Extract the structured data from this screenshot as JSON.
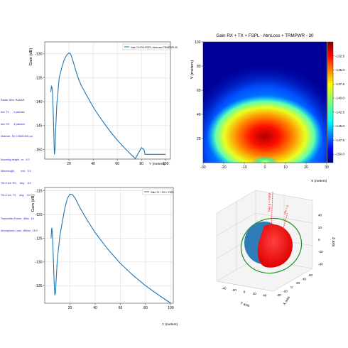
{
  "side_panel": {
    "group1": [
      "Radar: 80m: RADAR",
      "Ant. TX      4 patches",
      "Ant. RX      4 patches",
      "Material:  Re 0.5508 500 um"
    ],
    "group2": [
      "Mounting height,  m:   6.3",
      "Wavelength,        mm:   5.0",
      "Tilt of ant. RX,    deg:   -8.0",
      "Tilt of ant. TX,    deg:   -8.0"
    ],
    "group3": [
      "Transmitter Power:  dBm:  16",
      "Atmospheric Loss:  dB/km:  15.0"
    ]
  },
  "chart_data": [
    {
      "type": "line",
      "xlabel": "Y (meters)",
      "ylabel": "Gain (dB)",
      "xlim": [
        0,
        104
      ],
      "ylim": [
        -152,
        -127.5
      ],
      "xticks": [
        20,
        40,
        60,
        80,
        100
      ],
      "yticks": [
        -130,
        -135,
        -140,
        -145,
        -150
      ],
      "grid": true,
      "legend": "top-right",
      "series": [
        {
          "name": "Gain TX+RX+FSPL-AtmLoss+TRMPWR-30",
          "color": "#1f77b4",
          "x": [
            5,
            5.5,
            6,
            6.5,
            7,
            7.5,
            8,
            8.5,
            9,
            10,
            12,
            14,
            16,
            18,
            20,
            21,
            22,
            24,
            26,
            28,
            30,
            34,
            38,
            42,
            46,
            50,
            55,
            60,
            65,
            70,
            75,
            80,
            82,
            83,
            100
          ],
          "y": [
            -138,
            -136.8,
            -137,
            -138.5,
            -142,
            -147,
            -151,
            -150,
            -146,
            -140.5,
            -135,
            -133,
            -131.3,
            -130.3,
            -129.8,
            -129.9,
            -130.4,
            -132,
            -133.8,
            -135.3,
            -136.5,
            -138.4,
            -140.2,
            -141.9,
            -143.4,
            -144.8,
            -146.5,
            -148,
            -149.4,
            -150.7,
            -151.9,
            -149.6,
            -150,
            -151,
            -151
          ]
        }
      ]
    },
    {
      "type": "heatmap",
      "title": "Gain RX + TX + FSPL - AtmLoss + TRMPWR - 30",
      "xlabel": "X (meters)",
      "ylabel": "Y (meters)",
      "xlim": [
        -30,
        30
      ],
      "ylim": [
        0,
        100
      ],
      "xticks": [
        -30,
        -20,
        -10,
        0,
        10,
        20,
        30
      ],
      "yticks": [
        20,
        40,
        60,
        80,
        100
      ],
      "colorbar": {
        "min": -151.5,
        "max": -130,
        "colormap": "jet",
        "ticks": [
          -132.5,
          -135.0,
          -137.5,
          -140.0,
          -142.5,
          -145.0,
          -147.5,
          -150.0
        ]
      },
      "hotspots": [
        {
          "x": 0,
          "y": 22,
          "value": -130
        },
        {
          "x": 0,
          "y": 2,
          "value": -136
        }
      ]
    },
    {
      "type": "line",
      "xlabel": "Y (meters)",
      "ylabel": "Gain (dB)",
      "xlim": [
        0,
        102
      ],
      "ylim": [
        -138.7,
        -114.3
      ],
      "xticks": [
        20,
        40,
        60,
        80,
        100
      ],
      "yticks": [
        -115,
        -120,
        -125,
        -130,
        -135
      ],
      "grid": true,
      "legend": "top-right",
      "series": [
        {
          "name": "Gain TX + RX + FSPL",
          "color": "#1f77b4",
          "x": [
            5,
            5.5,
            6,
            6.5,
            7,
            7.5,
            8,
            8.5,
            9,
            10,
            12,
            14,
            16,
            18,
            20,
            22,
            24,
            28,
            34,
            40,
            50,
            60,
            70,
            80,
            90,
            100
          ],
          "y": [
            -125,
            -122.8,
            -123.5,
            -126.5,
            -130.5,
            -134.5,
            -137,
            -136.5,
            -134,
            -129.5,
            -124.5,
            -121.5,
            -118.6,
            -116.6,
            -115.7,
            -115.8,
            -116.5,
            -118.6,
            -121.3,
            -123.8,
            -127.3,
            -130.3,
            -132.8,
            -135,
            -136.9,
            -138.7
          ]
        }
      ]
    },
    {
      "type": "3d",
      "xlabel": "X axis",
      "ylabel": "Y axis",
      "zlabel": "Z axis",
      "x_ticks": [
        "-40",
        "-20",
        "0",
        "20",
        "40",
        "60"
      ],
      "y_ticks": [
        "-40",
        "-20",
        "0",
        "20",
        "40"
      ],
      "z_ticks": [
        "40",
        "20",
        "0",
        "-20",
        "-40"
      ],
      "annotations": [
        {
          "text": "theta = 0 deg",
          "color": "#ff2222"
        },
        {
          "text": "phi = 0",
          "color": "#ff2222"
        }
      ],
      "surfaces": [
        {
          "color": "#ff0000"
        },
        {
          "color": "#1f77b4"
        }
      ],
      "rings": [
        {
          "color": "#228b22"
        }
      ]
    }
  ]
}
